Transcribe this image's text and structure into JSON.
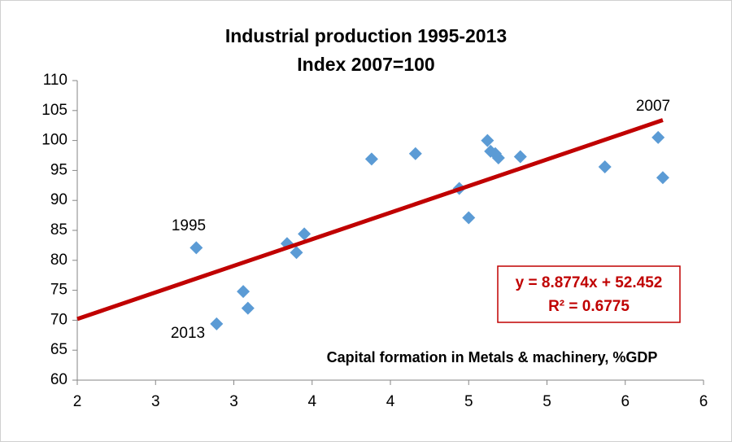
{
  "chart_data": {
    "type": "scatter",
    "title": "Industrial production 1995-2013",
    "subtitle": "Index 2007=100",
    "x_label": "Capital formation in Metals & machinery, %GDP",
    "x": [
      2.76,
      2.89,
      3.06,
      3.09,
      3.34,
      3.4,
      3.45,
      3.88,
      4.16,
      4.44,
      4.5,
      4.62,
      4.64,
      4.67,
      4.69,
      4.83,
      5.37,
      5.71,
      5.74
    ],
    "series": [
      {
        "color": "#5b9bd5",
        "values": [
          82.1,
          69.4,
          74.8,
          72.0,
          82.8,
          81.3,
          84.4,
          96.9,
          97.8,
          92.0,
          87.1,
          100.0,
          98.2,
          97.8,
          97.1,
          97.3,
          95.6,
          100.5,
          93.8
        ]
      }
    ],
    "trendline": {
      "color": "#c00000",
      "slope": 8.8774,
      "intercept": 52.452,
      "equation": "y = 8.8774x + 52.452",
      "r2": "R² = 0.6775"
    },
    "annotations": [
      "1995",
      "2013",
      "2007"
    ],
    "xlim": [
      2,
      6
    ],
    "xticks": [
      2,
      {
        "value": 2.5,
        "label": "3"
      },
      3,
      {
        "value": 3.5,
        "label": "4"
      },
      4,
      {
        "value": 4.5,
        "label": "5"
      },
      5,
      {
        "value": 5.5,
        "label": "6"
      },
      6
    ],
    "ylim": [
      60,
      110
    ],
    "yticks": [
      60,
      65,
      70,
      75,
      80,
      85,
      90,
      95,
      100,
      105,
      110
    ]
  }
}
